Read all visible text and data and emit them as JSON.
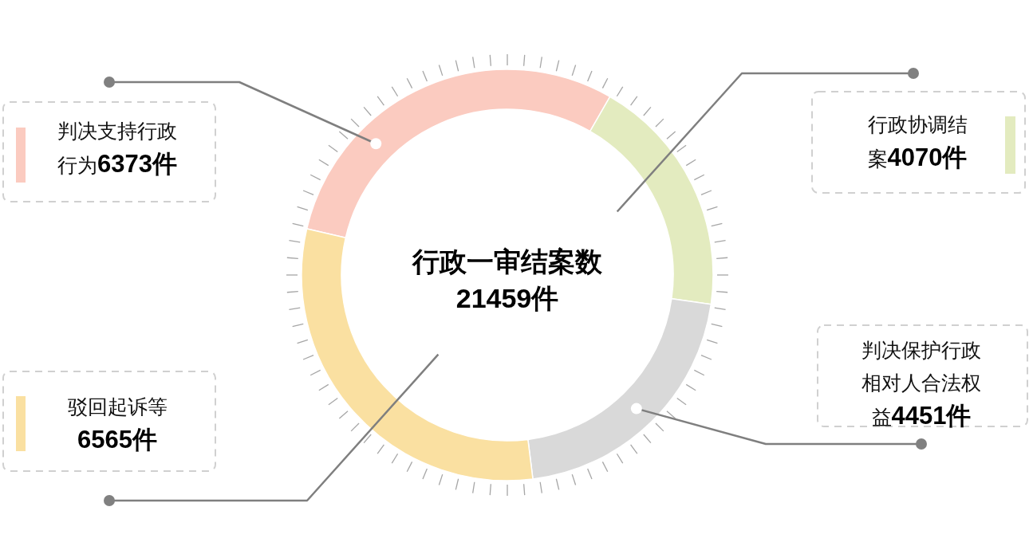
{
  "chart_data": {
    "type": "donut",
    "title": "行政一审结案数",
    "annotations": [
      "21459件"
    ],
    "categories": [
      "判决支持行政行为",
      "行政协调结案",
      "判决保护行政相对人合法权益",
      "驳回起诉等"
    ],
    "values": [
      6373,
      4070,
      4451,
      6565
    ],
    "value_labels": [
      "6373件",
      "4070件",
      "4451件",
      "6565件"
    ],
    "colors": [
      "#fbcbc0",
      "#e3ebbf",
      "#d9d9d9",
      "#fae0a1"
    ]
  }
}
